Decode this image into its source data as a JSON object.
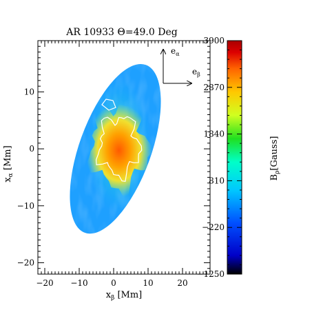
{
  "chart_data": {
    "type": "heatmap",
    "title": "AR 10933 Θ=49.0 Deg",
    "xlabel": "xβ [Mm]",
    "xlabel_main": "x",
    "xlabel_sub": "β",
    "xlabel_unit": " [Mm]",
    "ylabel": "xα [Mm]",
    "ylabel_main": "x",
    "ylabel_sub": "α",
    "ylabel_unit": " [Mm]",
    "xlim": [
      -22,
      28
    ],
    "ylim": [
      -22,
      19
    ],
    "xticks": [
      -20,
      -10,
      0,
      10,
      20
    ],
    "xtick_labels": [
      "−20",
      "−10",
      "0",
      "10",
      "20"
    ],
    "yticks": [
      -20,
      -10,
      0,
      10
    ],
    "ytick_labels": [
      "−20",
      "−10",
      "0",
      "10"
    ],
    "grid": false,
    "colorbar": {
      "label": "Bρ[Gauss]",
      "label_main": "B",
      "label_sub": "ρ",
      "label_unit": "[Gauss]",
      "min": -1250,
      "max": 3900,
      "ticks": [
        3900,
        2870,
        1840,
        810,
        -220,
        -1250
      ],
      "tick_labels": [
        "3900",
        "2870",
        "1840",
        "810",
        "−220",
        "−1250"
      ],
      "colormap": "rainbow",
      "colors": [
        "#000000",
        "#0000c8",
        "#0050ff",
        "#00c8ff",
        "#00ffc8",
        "#20e020",
        "#d0ff20",
        "#ffc800",
        "#ff6400",
        "#dc0000",
        "#aa0000"
      ]
    },
    "region": {
      "shape": "ellipse",
      "center": [
        0.5,
        0
      ],
      "semi_axis_x": 16,
      "semi_axis_alpha": 16,
      "background_field": 450,
      "umbra_peak_field": 2600,
      "umbra_center": [
        1.5,
        0.5
      ]
    },
    "vectors": {
      "e_alpha": {
        "main": "e",
        "sub": "α"
      },
      "e_beta": {
        "main": "e",
        "sub": "β"
      }
    }
  }
}
